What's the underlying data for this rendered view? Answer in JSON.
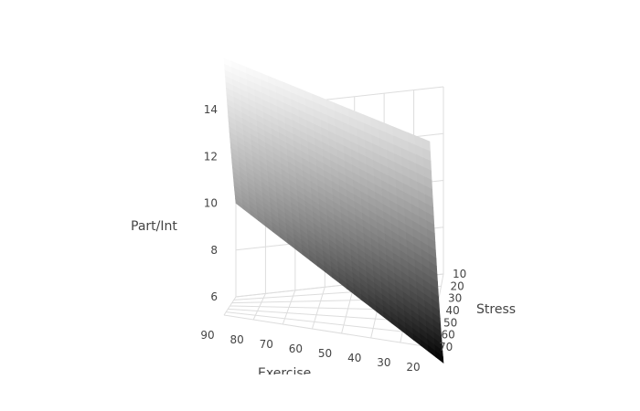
{
  "chart_data": {
    "type": "surface",
    "title": "",
    "zlabel": "Part/Int",
    "xlabel": "Exercise",
    "ylabel": "Stress",
    "x_ticks": [
      "90",
      "80",
      "70",
      "60",
      "50",
      "40",
      "30",
      "20"
    ],
    "y_ticks": [
      "10",
      "20",
      "30",
      "40",
      "50",
      "60",
      "70"
    ],
    "z_ticks": [
      "6",
      "8",
      "10",
      "12",
      "14"
    ],
    "xlim": [
      20,
      90
    ],
    "ylim": [
      10,
      70
    ],
    "zlim": [
      6,
      14
    ],
    "colorscale": [
      "#000000",
      "#ffffff"
    ],
    "corner_values": [
      {
        "exercise": 90,
        "stress": 70,
        "value": 15.0
      },
      {
        "exercise": 20,
        "stress": 70,
        "value": 13.2
      },
      {
        "exercise": 90,
        "stress": 10,
        "value": 10.0
      },
      {
        "exercise": 20,
        "stress": 10,
        "value": 2.2
      }
    ],
    "grid": true
  }
}
